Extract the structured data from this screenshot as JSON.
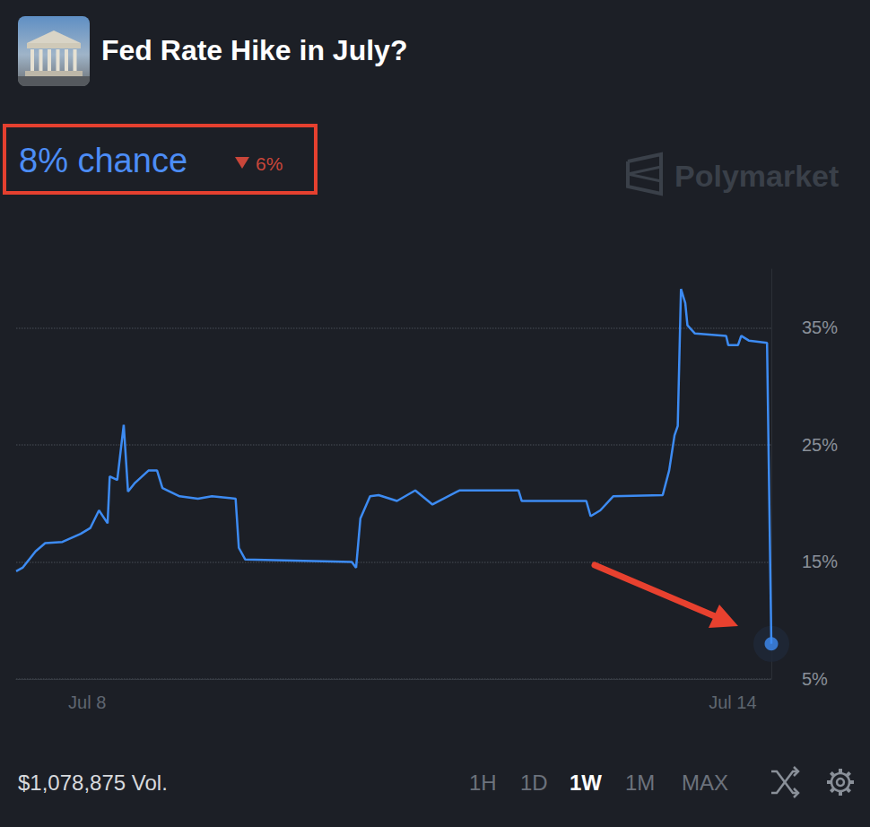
{
  "header": {
    "title": "Fed Rate Hike in July?",
    "chance": "8% chance",
    "change": "6%",
    "watermark": "Polymarket"
  },
  "chart_data": {
    "type": "line",
    "color": "#3d8bf2",
    "grid": true,
    "x": [
      7.34,
      7.4,
      7.52,
      7.61,
      7.77,
      7.94,
      8.03,
      8.11,
      8.19,
      8.21,
      8.28,
      8.34,
      8.38,
      8.44,
      8.57,
      8.65,
      8.7,
      8.86,
      9.03,
      9.16,
      9.38,
      9.41,
      9.47,
      10.46,
      10.5,
      10.54,
      10.63,
      10.71,
      10.88,
      11.05,
      11.21,
      11.46,
      12.01,
      12.04,
      12.64,
      12.68,
      12.77,
      12.89,
      13.35,
      13.41,
      13.46,
      13.49,
      13.52,
      13.56,
      13.58,
      13.65,
      13.94,
      13.96,
      14.05,
      14.08,
      14.15,
      14.32,
      14.36
    ],
    "values": [
      14.2,
      14.5,
      15.9,
      16.6,
      16.7,
      17.4,
      17.9,
      19.4,
      18.3,
      22.3,
      22.0,
      26.7,
      21.0,
      21.7,
      22.8,
      22.8,
      21.3,
      20.6,
      20.4,
      20.6,
      20.4,
      16.2,
      15.2,
      15.0,
      14.5,
      18.7,
      20.6,
      20.7,
      20.2,
      21.1,
      19.9,
      21.1,
      21.1,
      20.2,
      20.2,
      18.9,
      19.4,
      20.6,
      20.7,
      22.8,
      25.8,
      26.6,
      38.3,
      37.1,
      35.2,
      34.5,
      34.3,
      33.5,
      33.5,
      34.3,
      33.9,
      33.7,
      8
    ],
    "xlim": [
      7.34,
      14.36
    ],
    "xticks": [
      {
        "value": 8,
        "label": "Jul 8"
      },
      {
        "value": 14,
        "label": "Jul 14"
      }
    ],
    "ylim": [
      5,
      40
    ],
    "yticks": [
      {
        "value": 5,
        "label": "5%"
      },
      {
        "value": 15,
        "label": "15%"
      },
      {
        "value": 25,
        "label": "25%"
      },
      {
        "value": 35,
        "label": "35%"
      }
    ]
  },
  "footer": {
    "volume": "$1,078,875 Vol.",
    "ranges": [
      "1H",
      "1D",
      "1W",
      "1M",
      "MAX"
    ],
    "selected": "1W"
  }
}
